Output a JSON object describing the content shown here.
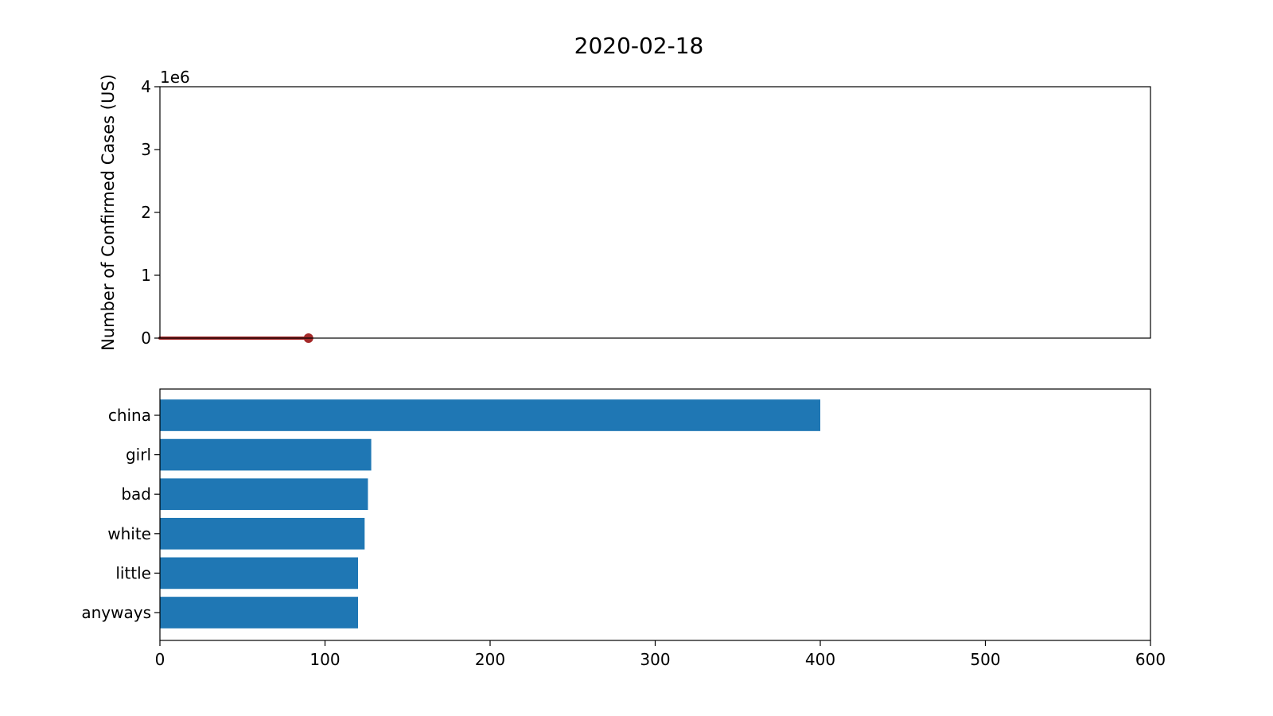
{
  "title": "2020-02-18",
  "chart_data": [
    {
      "type": "line",
      "ylabel": "Number of Confirmed Cases (US)",
      "y_offset_label": "1e6",
      "ylim": [
        0,
        4
      ],
      "yticks": [
        0,
        1,
        2,
        3,
        4
      ],
      "xlim": [
        0,
        600
      ],
      "grid": false,
      "series": [
        {
          "color": "#a52a2a",
          "x": [
            0,
            15,
            30,
            45,
            60,
            75,
            90
          ],
          "y": [
            0,
            0,
            0,
            0,
            0,
            0,
            0
          ],
          "end_marker": true
        }
      ]
    },
    {
      "type": "bar",
      "orientation": "horizontal",
      "categories": [
        "china",
        "girl",
        "bad",
        "white",
        "little",
        "anyways"
      ],
      "values": [
        400,
        128,
        126,
        124,
        120,
        120
      ],
      "color": "#1f77b4",
      "xlim": [
        0,
        600
      ],
      "xticks": [
        0,
        100,
        200,
        300,
        400,
        500,
        600
      ],
      "grid": false
    }
  ]
}
